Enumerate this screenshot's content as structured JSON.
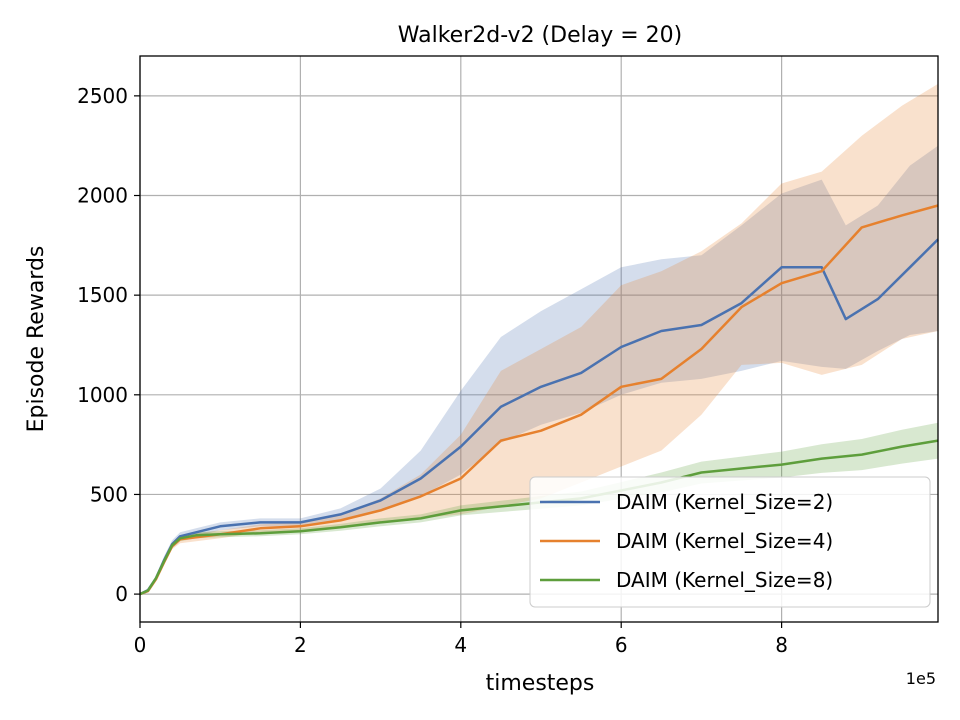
{
  "chart_data": {
    "type": "line",
    "title": "Walker2d-v2 (Delay = 20)",
    "xlabel": "timesteps",
    "ylabel": "Episode Rewards",
    "x_offset_label": "1e5",
    "xlim": [
      0,
      9.95
    ],
    "ylim": [
      -140,
      2700
    ],
    "xticks": [
      0,
      2,
      4,
      6,
      8
    ],
    "xtick_labels": [
      "0",
      "2",
      "4",
      "6",
      "8"
    ],
    "yticks": [
      0,
      500,
      1000,
      1500,
      2000,
      2500
    ],
    "ytick_labels": [
      "0",
      "500",
      "1000",
      "1500",
      "2000",
      "2500"
    ],
    "grid": true,
    "legend_position": "lower-right",
    "series": [
      {
        "name": "DAIM (Kernel_Size=2)",
        "color": "#4a72b0",
        "x": [
          0,
          0.1,
          0.2,
          0.3,
          0.4,
          0.5,
          0.7,
          1.0,
          1.5,
          2.0,
          2.5,
          3.0,
          3.5,
          4.0,
          4.5,
          5.0,
          5.5,
          6.0,
          6.5,
          7.0,
          7.5,
          8.0,
          8.5,
          8.8,
          9.2,
          9.6,
          9.95
        ],
        "y": [
          0,
          20,
          80,
          170,
          250,
          290,
          310,
          340,
          360,
          360,
          400,
          470,
          580,
          740,
          940,
          1040,
          1110,
          1240,
          1320,
          1350,
          1460,
          1640,
          1640,
          1380,
          1480,
          1640,
          1780
        ],
        "lower": [
          0,
          15,
          70,
          150,
          230,
          270,
          290,
          320,
          340,
          340,
          370,
          420,
          490,
          600,
          760,
          850,
          910,
          1000,
          1060,
          1080,
          1120,
          1170,
          1140,
          1130,
          1220,
          1300,
          1320
        ],
        "upper": [
          0,
          25,
          90,
          190,
          270,
          310,
          330,
          360,
          380,
          380,
          430,
          530,
          720,
          1020,
          1290,
          1420,
          1530,
          1640,
          1680,
          1700,
          1850,
          2010,
          2080,
          1850,
          1950,
          2150,
          2250
        ]
      },
      {
        "name": "DAIM (Kernel_Size=4)",
        "color": "#e6812e",
        "x": [
          0,
          0.1,
          0.2,
          0.3,
          0.4,
          0.5,
          0.7,
          1.0,
          1.5,
          2.0,
          2.5,
          3.0,
          3.5,
          4.0,
          4.5,
          5.0,
          5.5,
          6.0,
          6.5,
          7.0,
          7.5,
          8.0,
          8.5,
          9.0,
          9.5,
          9.95
        ],
        "y": [
          0,
          15,
          75,
          160,
          240,
          275,
          285,
          300,
          330,
          340,
          370,
          420,
          490,
          580,
          770,
          820,
          900,
          1040,
          1080,
          1230,
          1440,
          1560,
          1620,
          1840,
          1900,
          1950
        ],
        "lower": [
          0,
          10,
          65,
          145,
          225,
          255,
          265,
          280,
          310,
          320,
          340,
          360,
          380,
          400,
          440,
          480,
          560,
          640,
          720,
          900,
          1150,
          1160,
          1100,
          1150,
          1280,
          1320
        ],
        "upper": [
          0,
          20,
          85,
          175,
          255,
          295,
          305,
          320,
          350,
          360,
          400,
          480,
          600,
          800,
          1120,
          1230,
          1340,
          1550,
          1620,
          1720,
          1860,
          2060,
          2120,
          2300,
          2450,
          2560
        ]
      },
      {
        "name": "DAIM (Kernel_Size=8)",
        "color": "#5e9e3c",
        "x": [
          0,
          0.1,
          0.2,
          0.3,
          0.4,
          0.5,
          0.7,
          1.0,
          1.5,
          2.0,
          2.5,
          3.0,
          3.5,
          4.0,
          4.5,
          5.0,
          5.5,
          6.0,
          6.5,
          7.0,
          7.5,
          8.0,
          8.5,
          9.0,
          9.5,
          9.95
        ],
        "y": [
          0,
          18,
          80,
          165,
          245,
          280,
          295,
          300,
          305,
          315,
          335,
          360,
          380,
          420,
          440,
          460,
          480,
          520,
          560,
          610,
          630,
          650,
          680,
          700,
          740,
          770
        ],
        "lower": [
          0,
          14,
          70,
          150,
          230,
          265,
          280,
          285,
          290,
          300,
          318,
          340,
          360,
          395,
          412,
          428,
          445,
          478,
          510,
          555,
          570,
          585,
          608,
          622,
          655,
          680
        ],
        "upper": [
          0,
          22,
          90,
          180,
          260,
          295,
          310,
          315,
          320,
          330,
          352,
          380,
          400,
          445,
          468,
          492,
          515,
          562,
          610,
          665,
          690,
          715,
          752,
          778,
          825,
          860
        ]
      }
    ]
  }
}
